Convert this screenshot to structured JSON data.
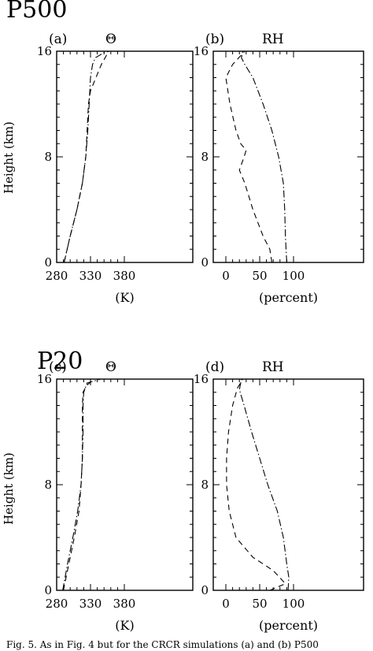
{
  "figure": {
    "groups": [
      {
        "title": "P500"
      },
      {
        "title": "P20"
      }
    ],
    "ylabel": "Height (km)",
    "caption": "Fig. 5. As in Fig. 4 but for the CRCR simulations (a) and (b) P500"
  },
  "chart_data": [
    {
      "type": "line",
      "panel": "(a)",
      "variable": "Θ",
      "xlabel": "(K)",
      "ylabel": "Height (km)",
      "xlim": [
        280,
        380
      ],
      "ylim": [
        0,
        16
      ],
      "xticks": [
        280,
        330,
        380
      ],
      "yticks": [
        0,
        8,
        16
      ],
      "grid": false,
      "series": [
        {
          "style": "dash-dot",
          "points": [
            [
              291,
              0
            ],
            [
              300,
              2
            ],
            [
              310,
              4
            ],
            [
              318,
              6
            ],
            [
              323,
              8
            ],
            [
              326,
              10
            ],
            [
              328,
              12
            ],
            [
              330,
              14
            ],
            [
              333,
              15
            ],
            [
              337,
              15.5
            ],
            [
              350,
              15.9
            ],
            [
              358,
              16
            ]
          ]
        },
        {
          "style": "dashed",
          "points": [
            [
              291,
              0
            ],
            [
              300,
              2
            ],
            [
              310,
              4
            ],
            [
              318,
              6
            ],
            [
              323,
              8
            ],
            [
              325,
              10
            ],
            [
              327,
              12
            ],
            [
              330,
              13
            ],
            [
              338,
              14
            ],
            [
              346,
              15
            ],
            [
              357,
              16
            ]
          ]
        }
      ]
    },
    {
      "type": "line",
      "panel": "(b)",
      "variable": "RH",
      "xlabel": "(percent)",
      "ylabel": "Height (km)",
      "xlim": [
        0,
        100
      ],
      "ylim": [
        0,
        16
      ],
      "xticks": [
        0,
        50,
        100
      ],
      "yticks": [
        0,
        8,
        16
      ],
      "grid": false,
      "series": [
        {
          "style": "dash-dot",
          "points": [
            [
              90,
              0
            ],
            [
              89,
              1
            ],
            [
              88,
              2
            ],
            [
              87,
              4
            ],
            [
              85,
              6
            ],
            [
              78,
              8
            ],
            [
              68,
              10
            ],
            [
              55,
              12
            ],
            [
              40,
              14
            ],
            [
              28,
              15
            ],
            [
              23,
              15.5
            ],
            [
              25,
              16
            ]
          ]
        },
        {
          "style": "dashed",
          "points": [
            [
              68,
              0
            ],
            [
              65,
              1
            ],
            [
              55,
              2
            ],
            [
              40,
              4
            ],
            [
              28,
              6
            ],
            [
              20,
              7
            ],
            [
              27,
              8
            ],
            [
              30,
              8.5
            ],
            [
              22,
              9
            ],
            [
              15,
              10
            ],
            [
              6,
              12
            ],
            [
              0,
              14
            ],
            [
              10,
              15
            ],
            [
              28,
              16
            ]
          ]
        }
      ]
    },
    {
      "type": "line",
      "panel": "(c)",
      "variable": "Θ",
      "xlabel": "(K)",
      "ylabel": "Height (km)",
      "xlim": [
        280,
        380
      ],
      "ylim": [
        0,
        16
      ],
      "xticks": [
        280,
        330,
        380
      ],
      "yticks": [
        0,
        8,
        16
      ],
      "grid": false,
      "series": [
        {
          "style": "dash-dot",
          "points": [
            [
              289,
              0
            ],
            [
              296,
              2
            ],
            [
              304,
              4
            ],
            [
              311,
              6
            ],
            [
              316,
              8
            ],
            [
              318,
              10
            ],
            [
              319,
              12
            ],
            [
              319,
              14
            ],
            [
              320,
              15
            ],
            [
              325,
              15.7
            ],
            [
              345,
              16
            ]
          ]
        },
        {
          "style": "dashed",
          "points": [
            [
              290,
              0
            ],
            [
              298,
              2
            ],
            [
              306,
              4
            ],
            [
              313,
              6
            ],
            [
              316,
              8
            ],
            [
              318,
              10
            ],
            [
              318,
              12
            ],
            [
              318,
              14
            ],
            [
              319,
              15
            ],
            [
              324,
              15.5
            ],
            [
              335,
              16
            ]
          ]
        }
      ]
    },
    {
      "type": "line",
      "panel": "(d)",
      "variable": "RH",
      "xlabel": "(percent)",
      "ylabel": "Height (km)",
      "xlim": [
        0,
        100
      ],
      "ylim": [
        0,
        16
      ],
      "xticks": [
        0,
        50,
        100
      ],
      "yticks": [
        0,
        8,
        16
      ],
      "grid": false,
      "series": [
        {
          "style": "dash-dot",
          "points": [
            [
              92,
              0
            ],
            [
              93,
              1
            ],
            [
              90,
              2
            ],
            [
              85,
              4
            ],
            [
              76,
              6
            ],
            [
              62,
              8
            ],
            [
              50,
              10
            ],
            [
              38,
              12
            ],
            [
              27,
              14
            ],
            [
              20,
              15.2
            ],
            [
              23,
              16
            ]
          ]
        },
        {
          "style": "dashed",
          "points": [
            [
              65,
              0
            ],
            [
              88,
              0.5
            ],
            [
              70,
              1.5
            ],
            [
              40,
              2.5
            ],
            [
              15,
              4
            ],
            [
              5,
              6
            ],
            [
              1,
              8
            ],
            [
              1,
              10
            ],
            [
              4,
              12
            ],
            [
              10,
              14
            ],
            [
              17,
              15.3
            ],
            [
              25,
              16
            ]
          ]
        }
      ]
    }
  ]
}
